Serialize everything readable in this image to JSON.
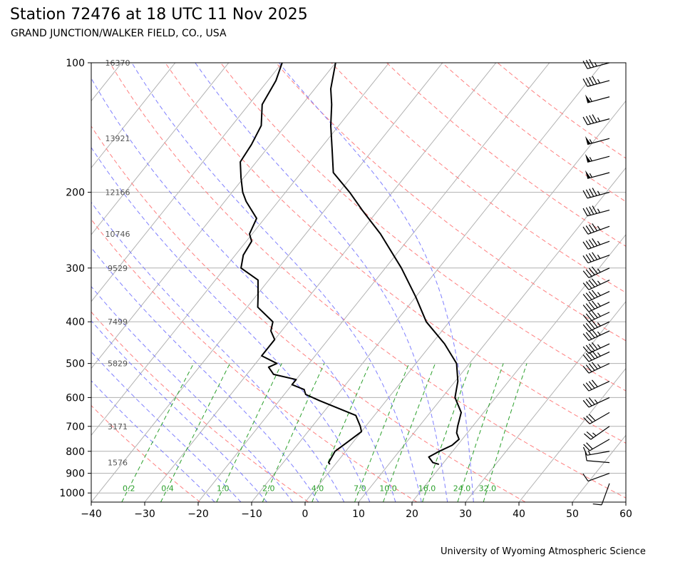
{
  "header": {
    "title": "Station 72476 at 18 UTC 11 Nov 2025",
    "subtitle": "GRAND JUNCTION/WALKER FIELD, CO., USA"
  },
  "footer": {
    "credit": "University of Wyoming Atmospheric Science"
  },
  "colors": {
    "temperature": "#000000",
    "dewpoint": "#000000",
    "isotherm": "#b0b0b0",
    "dry_adiabat": "#ff7f7f",
    "moist_adiabat": "#7f7fff",
    "mixing_ratio": "#2ca02c"
  },
  "chart_data": {
    "type": "skew-t",
    "x_axis": {
      "range": [
        -40,
        60
      ],
      "ticks": [
        -40,
        -30,
        -20,
        -10,
        0,
        10,
        20,
        30,
        40,
        50,
        60
      ],
      "tick_labels": [
        "−40",
        "−30",
        "−20",
        "−10",
        "0",
        "10",
        "20",
        "30",
        "40",
        "50",
        "60"
      ]
    },
    "y_axis": {
      "range": [
        1050,
        100
      ],
      "scale": "log",
      "ticks": [
        100,
        200,
        300,
        400,
        500,
        600,
        700,
        800,
        900,
        1000
      ]
    },
    "grid": true,
    "height_labels": [
      {
        "p": 100,
        "height": "16370"
      },
      {
        "p": 150,
        "height": "13921"
      },
      {
        "p": 200,
        "height": "12166"
      },
      {
        "p": 250,
        "height": "10746"
      },
      {
        "p": 300,
        "height": "9529"
      },
      {
        "p": 400,
        "height": "7499"
      },
      {
        "p": 500,
        "height": "5829"
      },
      {
        "p": 700,
        "height": "3171"
      },
      {
        "p": 850,
        "height": "1576"
      }
    ],
    "mixing_ratio_labels": [
      "0.2",
      "0.4",
      "1.0",
      "2.0",
      "4.0",
      "7.0",
      "10.0",
      "16.0",
      "24.0",
      "32.0"
    ],
    "mixing_ratio_values": [
      0.2,
      0.4,
      1.0,
      2.0,
      4.0,
      7.0,
      10.0,
      16.0,
      24.0,
      32.0
    ],
    "dry_adiabats_thetaK": [
      230,
      250,
      270,
      290,
      310,
      330,
      350,
      370,
      390,
      410,
      430,
      450,
      470
    ],
    "moist_adiabats_C": [
      -20,
      -15,
      -10,
      -5,
      0,
      5,
      10,
      15,
      20,
      25,
      30
    ],
    "series": [
      {
        "kind": "temperature",
        "points": [
          [
            858,
            19.4
          ],
          [
            850,
            18.0
          ],
          [
            825,
            16.4
          ],
          [
            800,
            17.5
          ],
          [
            775,
            19.0
          ],
          [
            750,
            19.4
          ],
          [
            725,
            18.0
          ],
          [
            700,
            17.2
          ],
          [
            650,
            15.8
          ],
          [
            600,
            12.4
          ],
          [
            550,
            10.5
          ],
          [
            500,
            7.6
          ],
          [
            450,
            2.4
          ],
          [
            400,
            -4.3
          ],
          [
            350,
            -10.0
          ],
          [
            300,
            -17.0
          ],
          [
            250,
            -26.0
          ],
          [
            220,
            -33.0
          ],
          [
            200,
            -38.0
          ],
          [
            180,
            -44.0
          ],
          [
            160,
            -47.5
          ],
          [
            140,
            -51.5
          ],
          [
            125,
            -54.5
          ],
          [
            115,
            -57.0
          ],
          [
            100,
            -60.0
          ]
        ]
      },
      {
        "kind": "dewpoint",
        "points": [
          [
            858,
            -1.0
          ],
          [
            850,
            -1.5
          ],
          [
            800,
            -2.0
          ],
          [
            760,
            -1.0
          ],
          [
            720,
            0.0
          ],
          [
            700,
            -1.0
          ],
          [
            660,
            -3.5
          ],
          [
            610,
            -12.5
          ],
          [
            590,
            -16.0
          ],
          [
            575,
            -17.0
          ],
          [
            560,
            -20.0
          ],
          [
            545,
            -20.0
          ],
          [
            530,
            -25.0
          ],
          [
            510,
            -27.0
          ],
          [
            500,
            -26.0
          ],
          [
            480,
            -30.0
          ],
          [
            460,
            -30.0
          ],
          [
            440,
            -30.0
          ],
          [
            420,
            -32.0
          ],
          [
            400,
            -33.0
          ],
          [
            370,
            -38.0
          ],
          [
            350,
            -39.5
          ],
          [
            320,
            -42.0
          ],
          [
            300,
            -47.0
          ],
          [
            280,
            -48.5
          ],
          [
            260,
            -49.0
          ],
          [
            250,
            -50.5
          ],
          [
            230,
            -51.5
          ],
          [
            210,
            -56.0
          ],
          [
            200,
            -58.0
          ],
          [
            185,
            -60.5
          ],
          [
            170,
            -63.0
          ],
          [
            155,
            -63.5
          ],
          [
            140,
            -64.5
          ],
          [
            125,
            -67.5
          ],
          [
            110,
            -68.5
          ],
          [
            100,
            -70.0
          ]
        ]
      }
    ],
    "wind_barbs": [
      {
        "p": 950,
        "dir": 200,
        "kt": 10
      },
      {
        "p": 900,
        "dir": 250,
        "kt": 10
      },
      {
        "p": 850,
        "dir": 275,
        "kt": 10
      },
      {
        "p": 800,
        "dir": 260,
        "kt": 15
      },
      {
        "p": 750,
        "dir": 240,
        "kt": 20
      },
      {
        "p": 700,
        "dir": 235,
        "kt": 25
      },
      {
        "p": 650,
        "dir": 240,
        "kt": 30
      },
      {
        "p": 600,
        "dir": 245,
        "kt": 35
      },
      {
        "p": 550,
        "dir": 245,
        "kt": 40
      },
      {
        "p": 500,
        "dir": 245,
        "kt": 45
      },
      {
        "p": 470,
        "dir": 245,
        "kt": 45
      },
      {
        "p": 450,
        "dir": 245,
        "kt": 45
      },
      {
        "p": 420,
        "dir": 245,
        "kt": 45
      },
      {
        "p": 400,
        "dir": 245,
        "kt": 45
      },
      {
        "p": 380,
        "dir": 245,
        "kt": 45
      },
      {
        "p": 360,
        "dir": 245,
        "kt": 45
      },
      {
        "p": 340,
        "dir": 245,
        "kt": 45
      },
      {
        "p": 320,
        "dir": 245,
        "kt": 45
      },
      {
        "p": 300,
        "dir": 245,
        "kt": 45
      },
      {
        "p": 280,
        "dir": 250,
        "kt": 45
      },
      {
        "p": 260,
        "dir": 250,
        "kt": 45
      },
      {
        "p": 240,
        "dir": 250,
        "kt": 45
      },
      {
        "p": 220,
        "dir": 255,
        "kt": 45
      },
      {
        "p": 200,
        "dir": 255,
        "kt": 45
      },
      {
        "p": 180,
        "dir": 255,
        "kt": 55
      },
      {
        "p": 165,
        "dir": 255,
        "kt": 55
      },
      {
        "p": 150,
        "dir": 255,
        "kt": 55
      },
      {
        "p": 135,
        "dir": 255,
        "kt": 45
      },
      {
        "p": 120,
        "dir": 255,
        "kt": 55
      },
      {
        "p": 110,
        "dir": 255,
        "kt": 45
      },
      {
        "p": 100,
        "dir": 255,
        "kt": 35
      }
    ]
  }
}
